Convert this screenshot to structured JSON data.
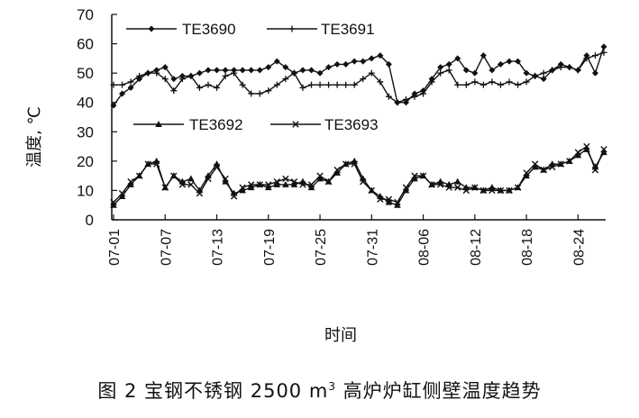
{
  "chart_data": {
    "type": "line",
    "ylabel": "温度, ℃",
    "xlabel": "时间",
    "ylim": [
      0,
      70
    ],
    "yticks": [
      0,
      10,
      20,
      30,
      40,
      50,
      60,
      70
    ],
    "x_tick_labels": [
      "07-01",
      "07-07",
      "07-13",
      "07-19",
      "07-25",
      "07-31",
      "08-06",
      "08-12",
      "08-18",
      "08-24"
    ],
    "x_tick_days": [
      0,
      6,
      12,
      18,
      24,
      30,
      36,
      42,
      48,
      54
    ],
    "grid": false,
    "series": [
      {
        "name": "TE3690",
        "marker": "diamond",
        "values": [
          39,
          43,
          45,
          48,
          50,
          51,
          52,
          48,
          49,
          49,
          50,
          51,
          51,
          51,
          51,
          51,
          51,
          51,
          52,
          54,
          52,
          50,
          51,
          51,
          50,
          52,
          53,
          53,
          54,
          54,
          55,
          56,
          53,
          40,
          40,
          43,
          44,
          48,
          52,
          53,
          55,
          51,
          50,
          56,
          51,
          53,
          54,
          54,
          50,
          49,
          48,
          51,
          53,
          52,
          51,
          56,
          50,
          59
        ]
      },
      {
        "name": "TE3691",
        "marker": "plus",
        "values": [
          46,
          46,
          47,
          49,
          50,
          50,
          48,
          44,
          48,
          49,
          45,
          46,
          45,
          49,
          50,
          46,
          43,
          43,
          44,
          46,
          48,
          50,
          45,
          46,
          46,
          46,
          46,
          46,
          46,
          48,
          50,
          47,
          42,
          40,
          41,
          42,
          43,
          47,
          50,
          51,
          46,
          46,
          47,
          46,
          47,
          46,
          47,
          46,
          47,
          49,
          50,
          51,
          52,
          52,
          51,
          55,
          56,
          57
        ]
      },
      {
        "name": "TE3692",
        "marker": "triangle",
        "values": [
          5,
          8,
          12,
          15,
          19,
          20,
          11,
          15,
          13,
          14,
          10,
          15,
          19,
          13,
          9,
          10,
          11,
          12,
          11,
          12,
          12,
          12,
          13,
          11,
          14,
          13,
          16,
          19,
          20,
          14,
          10,
          8,
          6,
          5,
          10,
          14,
          15,
          12,
          13,
          12,
          13,
          11,
          11,
          10,
          11,
          10,
          10,
          11,
          15,
          18,
          17,
          19,
          19,
          20,
          22,
          24,
          18,
          23
        ]
      },
      {
        "name": "TE3693",
        "marker": "x",
        "values": [
          6,
          9,
          13,
          15,
          19,
          19,
          11,
          15,
          12,
          12,
          9,
          14,
          18,
          14,
          8,
          11,
          12,
          12,
          12,
          13,
          14,
          13,
          12,
          12,
          15,
          13,
          17,
          19,
          19,
          13,
          10,
          7,
          7,
          6,
          11,
          15,
          15,
          12,
          12,
          11,
          11,
          10,
          11,
          10,
          10,
          10,
          10,
          11,
          16,
          19,
          17,
          18,
          19,
          20,
          23,
          25,
          17,
          24
        ]
      }
    ]
  },
  "caption": {
    "text_before": "图 2   宝钢不锈钢 2500 m",
    "superscript": "3",
    "text_after": " 高炉炉缸侧壁温度趋势"
  }
}
